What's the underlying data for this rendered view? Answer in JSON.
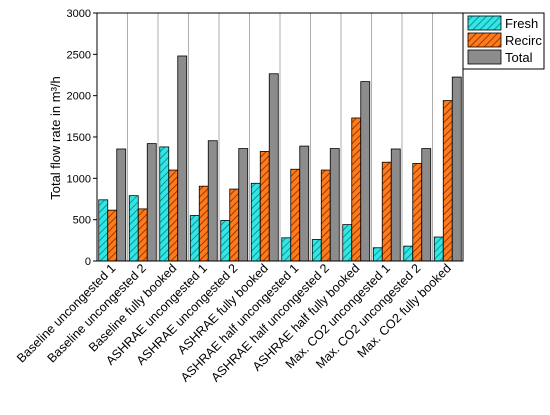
{
  "chart_data": {
    "type": "bar",
    "ylabel": "Total flow rate in m³/h",
    "ylim": [
      0,
      3000
    ],
    "yticks": [
      0,
      500,
      1000,
      1500,
      2000,
      2500,
      3000
    ],
    "grid": "vertical",
    "legend": "top-right",
    "categories": [
      "Baseline uncongested 1",
      "Baseline uncongested 2",
      "Baseline fully booked",
      "ASHRAE uncongested 1",
      "ASHRAE uncongested 2",
      "ASHRAE fully booked",
      "ASHRAE half uncongested 1",
      "ASHRAE half uncongested 2",
      "ASHRAE half fully booked",
      "Max. CO2 uncongested 1",
      "Max. CO2 uncongested 2",
      "Max. CO2 fully booked"
    ],
    "series": [
      {
        "name": "Fresh",
        "color": "#33e6e6",
        "hatch": "diagonal-dark",
        "values": [
          740,
          790,
          1380,
          550,
          490,
          940,
          280,
          260,
          440,
          160,
          180,
          290
        ]
      },
      {
        "name": "Recirc",
        "color": "#ff7a1a",
        "hatch": "diagonal-dark",
        "values": [
          615,
          630,
          1100,
          905,
          870,
          1325,
          1110,
          1100,
          1730,
          1195,
          1180,
          1940
        ]
      },
      {
        "name": "Total",
        "color": "#8c8c8c",
        "hatch": "none",
        "values": [
          1355,
          1420,
          2480,
          1455,
          1360,
          2265,
          1390,
          1360,
          2170,
          1355,
          1360,
          2225
        ]
      }
    ]
  }
}
